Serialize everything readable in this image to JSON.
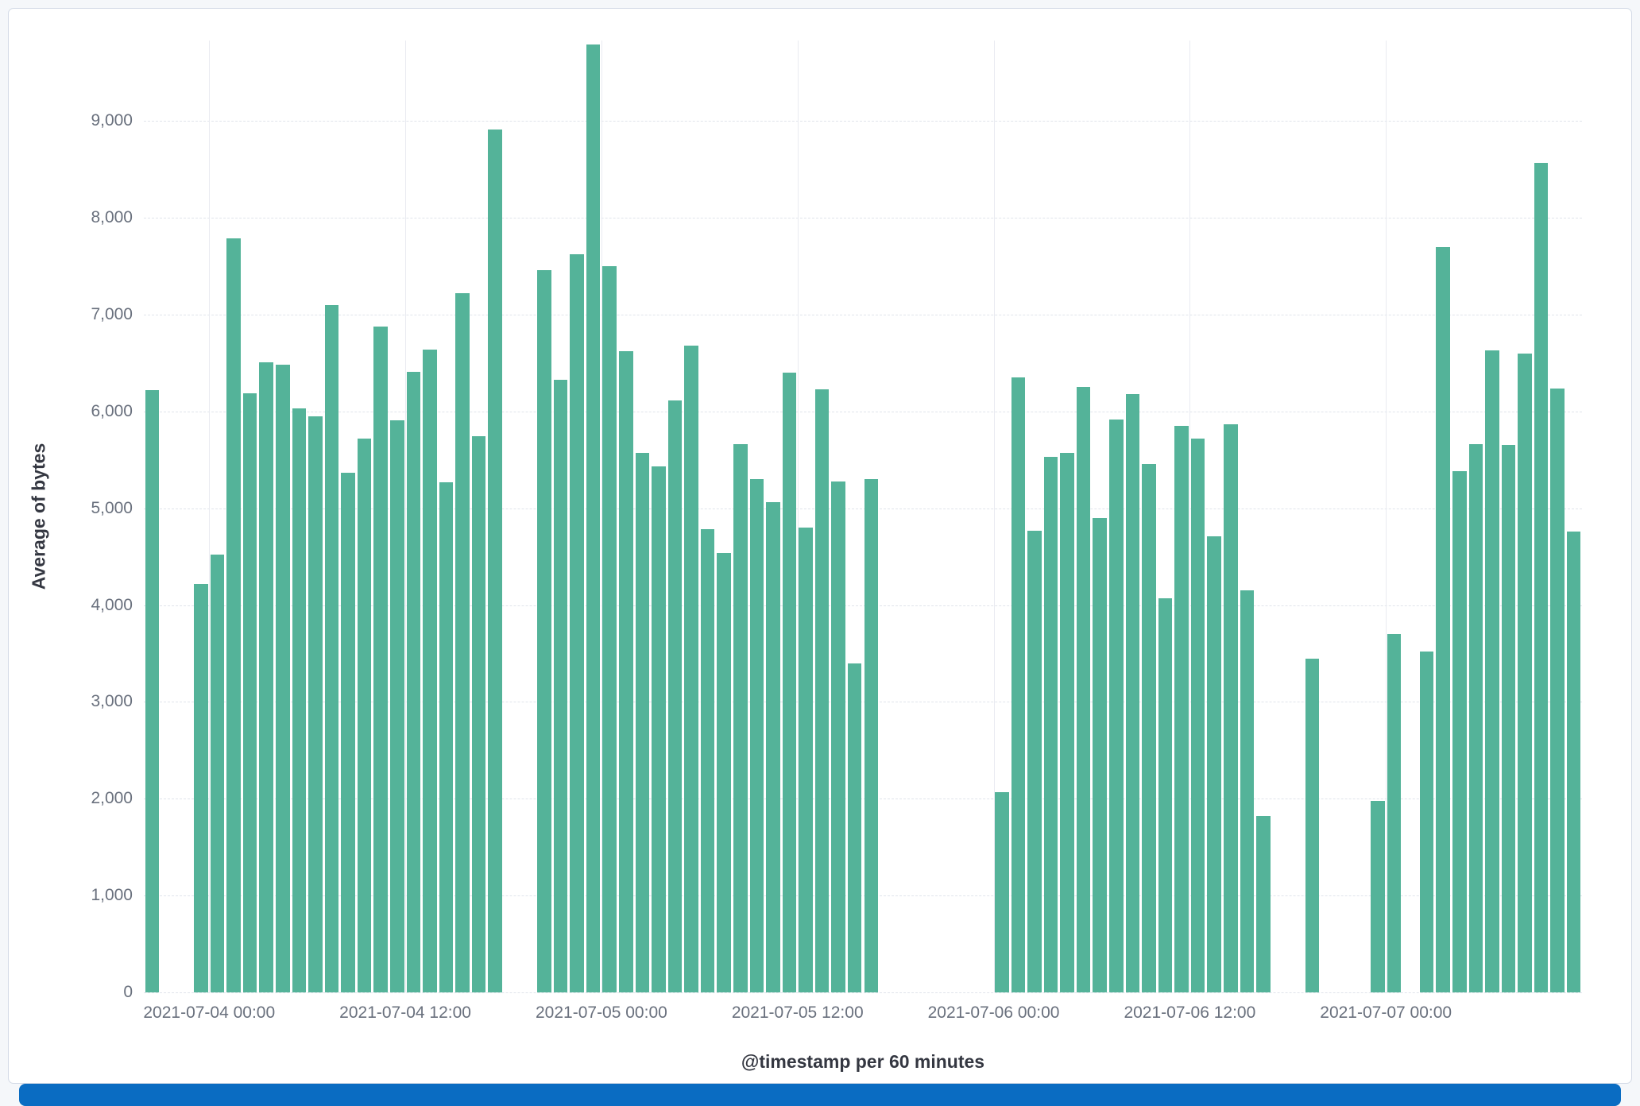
{
  "chart_data": {
    "type": "bar",
    "title": "",
    "xlabel": "@timestamp per 60 minutes",
    "ylabel": "Average of bytes",
    "ylim": [
      0,
      9830
    ],
    "grid": true,
    "legend": "none",
    "bar_color": "#54b399",
    "x_start": "2021-07-03 20:00",
    "x_interval_minutes": 60,
    "y_ticks": [
      {
        "value": 0,
        "label": "0"
      },
      {
        "value": 1000,
        "label": "1,000"
      },
      {
        "value": 2000,
        "label": "2,000"
      },
      {
        "value": 3000,
        "label": "3,000"
      },
      {
        "value": 4000,
        "label": "4,000"
      },
      {
        "value": 5000,
        "label": "5,000"
      },
      {
        "value": 6000,
        "label": "6,000"
      },
      {
        "value": 7000,
        "label": "7,000"
      },
      {
        "value": 8000,
        "label": "8,000"
      },
      {
        "value": 9000,
        "label": "9,000"
      }
    ],
    "x_ticks": [
      {
        "index": 4,
        "label": "2021-07-04 00:00"
      },
      {
        "index": 16,
        "label": "2021-07-04 12:00"
      },
      {
        "index": 28,
        "label": "2021-07-05 00:00"
      },
      {
        "index": 40,
        "label": "2021-07-05 12:00"
      },
      {
        "index": 52,
        "label": "2021-07-06 00:00"
      },
      {
        "index": 64,
        "label": "2021-07-06 12:00"
      },
      {
        "index": 76,
        "label": "2021-07-07 00:00"
      }
    ],
    "values": [
      6220,
      null,
      null,
      4220,
      4520,
      7790,
      6190,
      6510,
      6480,
      6030,
      5950,
      7100,
      5370,
      5720,
      6880,
      5910,
      6410,
      6640,
      5270,
      7220,
      5740,
      8910,
      null,
      null,
      7460,
      6330,
      7620,
      9790,
      7500,
      6620,
      5570,
      5430,
      6110,
      6680,
      4780,
      4540,
      5660,
      5300,
      5060,
      6400,
      4800,
      6230,
      5280,
      3400,
      5300,
      null,
      null,
      null,
      null,
      null,
      null,
      null,
      2070,
      6350,
      4770,
      5530,
      5570,
      6250,
      4900,
      5920,
      6180,
      5460,
      4070,
      5850,
      5720,
      4710,
      5870,
      4150,
      1820,
      null,
      null,
      3450,
      null,
      null,
      null,
      1980,
      3700,
      null,
      3520,
      7700,
      5380,
      5660,
      6630,
      5650,
      6600,
      8570,
      6240,
      4760
    ],
    "series": [
      {
        "name": "Average of bytes"
      }
    ]
  }
}
